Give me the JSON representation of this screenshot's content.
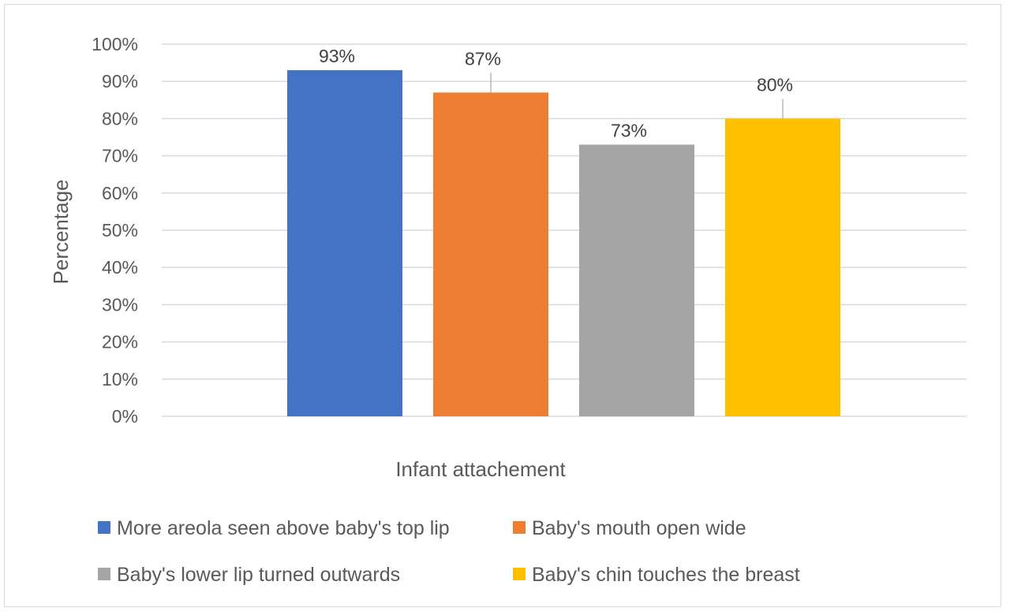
{
  "chart_data": {
    "type": "bar",
    "xlabel": "Infant attachement",
    "ylabel": "Percentage",
    "ylim": [
      0,
      100
    ],
    "yticks": [
      "0%",
      "10%",
      "20%",
      "30%",
      "40%",
      "50%",
      "60%",
      "70%",
      "80%",
      "90%",
      "100%"
    ],
    "grid": true,
    "legend_position": "bottom",
    "series": [
      {
        "name": "More areola seen above baby's top lip",
        "value": 93,
        "label": "93%",
        "color": "#4472c4"
      },
      {
        "name": "Baby's mouth open wide",
        "value": 87,
        "label": "87%",
        "color": "#ed7d31"
      },
      {
        "name": "Baby's lower lip turned outwards",
        "value": 73,
        "label": "73%",
        "color": "#a5a5a5"
      },
      {
        "name": "Baby's chin touches the breast",
        "value": 80,
        "label": "80%",
        "color": "#ffc000"
      }
    ]
  }
}
